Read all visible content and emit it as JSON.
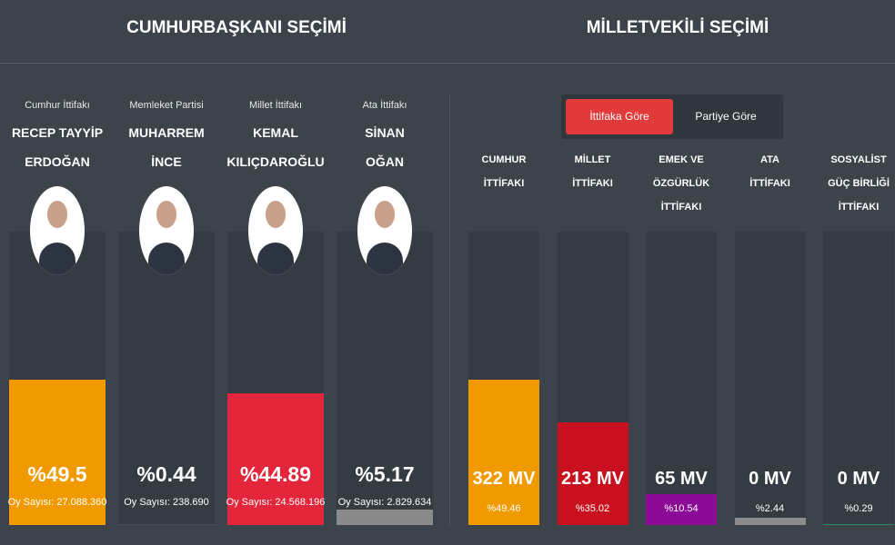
{
  "tabs": [
    "İttifaka Göre",
    "Partiye Göre"
  ],
  "chart_data": [
    {
      "type": "bar",
      "title": "CUMHURBAŞKANI SEÇİMİ",
      "subtitles": [
        "Cumhur İttifakı",
        "Memleket Partisi",
        "Millet İttifakı",
        "Ata İttifakı"
      ],
      "categories": [
        "RECEP TAYYİP\nERDOĞAN",
        "MUHARREM\nİNCE",
        "KEMAL\nKILIÇDAROĞLU",
        "SİNAN\nOĞAN"
      ],
      "values": [
        49.5,
        0.44,
        44.89,
        5.17
      ],
      "value_labels": [
        "%49.5",
        "%0.44",
        "%44.89",
        "%5.17"
      ],
      "vote_labels": [
        "Oy Sayısı: 27.088.360",
        "Oy Sayısı: 238.690",
        "Oy Sayısı: 24.568.196",
        "Oy Sayısı: 2.829.634"
      ],
      "colors": [
        "#f09a00",
        "#4a5058",
        "#e3263b",
        "#8a8a8a"
      ],
      "ylim": [
        0,
        100
      ]
    },
    {
      "type": "bar",
      "title": "MİLLETVEKİLİ SEÇİMİ",
      "categories": [
        "CUMHUR\nİTTİFAKI",
        "MİLLET\nİTTİFAKI",
        "EMEK VE\nÖZGÜRLÜK\nİTTİFAKI",
        "ATA\nİTTİFAKI",
        "SOSYALİST\nGÜÇ BİRLİĞİ\nİTTİFAKI"
      ],
      "values": [
        49.46,
        35.02,
        10.54,
        2.44,
        0.29
      ],
      "value_labels": [
        "%49.46",
        "%35.02",
        "%10.54",
        "%2.44",
        "%0.29"
      ],
      "seat_labels": [
        "322 MV",
        "213 MV",
        "65 MV",
        "0 MV",
        "0 MV"
      ],
      "colors": [
        "#f09a00",
        "#c8101e",
        "#8b0a96",
        "#8c8c8c",
        "#2a8a6a"
      ],
      "ylim": [
        0,
        100
      ]
    }
  ]
}
